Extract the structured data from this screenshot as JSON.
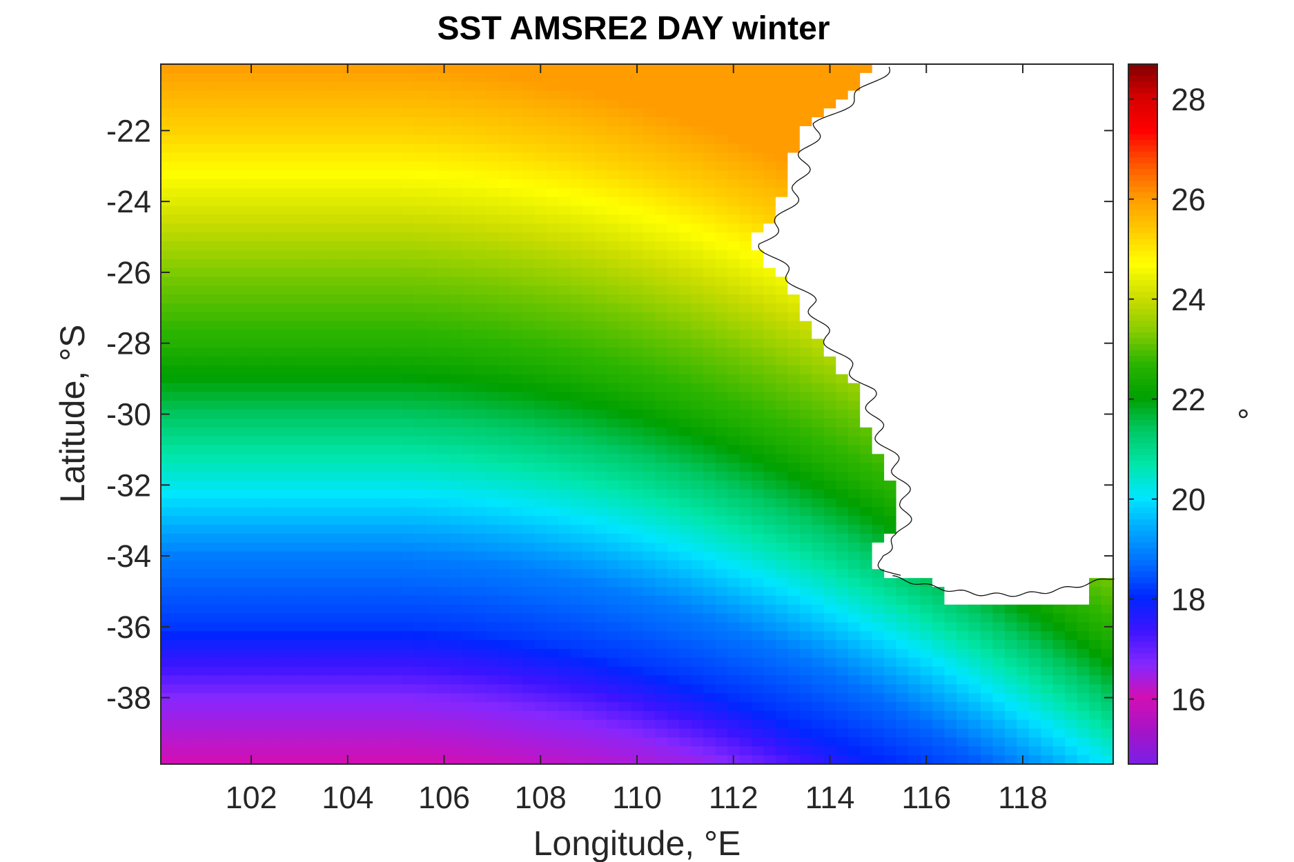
{
  "chart_data": {
    "type": "heatmap",
    "title": "SST AMSRE2 DAY winter",
    "xlabel": "Longitude, °E",
    "ylabel": "Latitude, °S",
    "xlim": [
      100.125,
      119.875
    ],
    "ylim": [
      -39.875,
      -20.125
    ],
    "x_ticks": [
      102,
      104,
      106,
      108,
      110,
      112,
      114,
      116,
      118
    ],
    "y_ticks": [
      -22,
      -24,
      -26,
      -28,
      -30,
      -32,
      -34,
      -36,
      -38
    ],
    "colorbar": {
      "label": "°",
      "limits": [
        14.7,
        28.7
      ],
      "ticks": [
        16,
        18,
        20,
        22,
        24,
        26,
        28
      ],
      "colormap": [
        "#7a1fe6",
        "#a514c8",
        "#d20fb4",
        "#8428ff",
        "#3c14ff",
        "#0026ff",
        "#006cff",
        "#00a6ff",
        "#00e6ff",
        "#00e6a8",
        "#00c864",
        "#00a000",
        "#2ab400",
        "#88cc00",
        "#ccdd00",
        "#ffff00",
        "#ffcc00",
        "#ff9900",
        "#ff5500",
        "#ff0000",
        "#d80000",
        "#800000"
      ]
    },
    "grid": false,
    "field_description": {
      "sst_profile_lat_deg": [
        -20.125,
        -22,
        -24,
        -26,
        -28,
        -30,
        -32,
        -34,
        -36,
        -38,
        -39.875
      ],
      "sst_profile_west_degC": [
        26.0,
        25.3,
        24.3,
        23.3,
        22.6,
        21.4,
        20.2,
        18.9,
        18.2,
        16.7,
        16.0
      ],
      "land_region": "Western Australia coast east of ~113-115°E, north of ~35°S"
    }
  }
}
